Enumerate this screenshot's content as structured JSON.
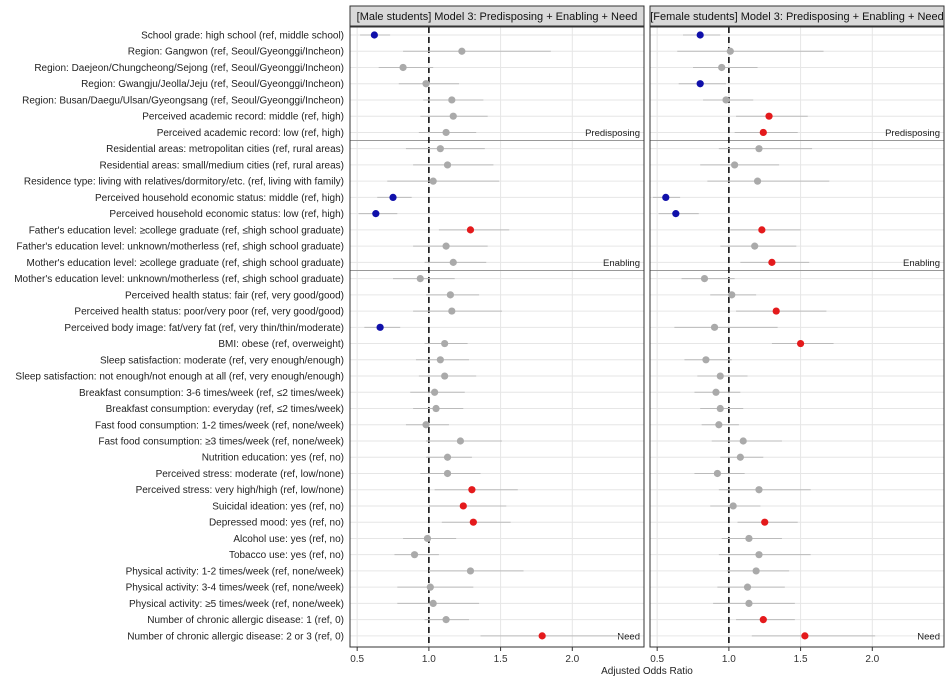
{
  "chart_data": {
    "type": "scatter",
    "xlabel": "Adjusted Odds Ratio",
    "xlim": [
      0.45,
      2.5
    ],
    "xticks": [
      0.5,
      1.0,
      1.5,
      2.0
    ],
    "tick_labels": [
      "0.5",
      "1.0",
      "1.5",
      "2.0"
    ],
    "reference_line": 1.0,
    "colors": {
      "significant_high": "#e41a1c",
      "significant_low": "#1010aa",
      "not_significant": "#aaaaaa",
      "ci": "#bbbbbb",
      "strip": "#d9d9d9",
      "grid": "#e6e6e6"
    },
    "groups": [
      {
        "label": "Predisposing",
        "start": 0,
        "end": 6
      },
      {
        "label": "Enabling",
        "start": 7,
        "end": 14
      },
      {
        "label": "Need",
        "start": 15,
        "end": 37
      }
    ],
    "variables": [
      "School grade: high school (ref,  middle school)",
      "Region: Gangwon (ref, Seoul/Gyeonggi/Incheon)",
      "Region: Daejeon/Chungcheong/Sejong (ref, Seoul/Gyeonggi/Incheon)",
      "Region: Gwangju/Jeolla/Jeju (ref, Seoul/Gyeonggi/Incheon)",
      "Region: Busan/Daegu/Ulsan/Gyeongsang (ref, Seoul/Gyeonggi/Incheon)",
      "Perceived academic record: middle (ref, high)",
      "Perceived academic record: low (ref, high)",
      "Residential areas: metropolitan cities (ref, rural areas)",
      "Residential areas: small/medium cities (ref, rural areas)",
      "Residence type: living with relatives/dormitory/etc. (ref, living with family)",
      "Perceived household economic status: middle (ref, high)",
      "Perceived household economic status: low (ref, high)",
      "Father's education level: ≥college graduate (ref, ≤high school graduate)",
      "Father's education level: unknown/motherless (ref, ≤high school graduate)",
      "Mother's education level: ≥college graduate (ref, ≤high school graduate)",
      "Mother's education level: unknown/motherless (ref, ≤high school graduate)",
      "Perceived health status: fair (ref, very good/good)",
      "Perceived health status: poor/very poor (ref, very good/good)",
      "Perceived body image: fat/very fat (ref, very thin/thin/moderate)",
      "BMI: obese (ref, overweight)",
      "Sleep satisfaction: moderate (ref, very enough/enough)",
      "Sleep satisfaction: not enough/not enough at all (ref, very enough/enough)",
      "Breakfast consumption: 3-6 times/week (ref, ≤2 times/week)",
      "Breakfast consumption: everyday (ref, ≤2 times/week)",
      "Fast food consumption: 1-2 times/week (ref, none/week)",
      "Fast food consumption: ≥3 times/week (ref, none/week)",
      "Nutrition education: yes (ref, no)",
      "Perceived stress: moderate (ref, low/none)",
      "Perceived stress: very high/high (ref, low/none)",
      "Suicidal ideation: yes (ref, no)",
      "Depressed mood: yes (ref, no)",
      "Alcohol use: yes (ref, no)",
      "Tobacco use: yes (ref, no)",
      "Physical activity: 1-2 times/week (ref, none/week)",
      "Physical activity: 3-4 times/week (ref, none/week)",
      "Physical activity: ≥5 times/week (ref, none/week)",
      "Number of chronic allergic disease: 1 (ref, 0)",
      "Number of chronic allergic disease: 2 or 3 (ref, 0)"
    ],
    "panels": [
      {
        "title": "[Male students] Model 3: Predisposing + Enabling + Need",
        "series": [
          {
            "or": 0.62,
            "lo": 0.52,
            "hi": 0.73,
            "sig": "low"
          },
          {
            "or": 1.23,
            "lo": 0.82,
            "hi": 1.85,
            "sig": "none"
          },
          {
            "or": 0.82,
            "lo": 0.65,
            "hi": 1.03,
            "sig": "none"
          },
          {
            "or": 0.98,
            "lo": 0.79,
            "hi": 1.21,
            "sig": "none"
          },
          {
            "or": 1.16,
            "lo": 0.96,
            "hi": 1.38,
            "sig": "none"
          },
          {
            "or": 1.17,
            "lo": 0.94,
            "hi": 1.41,
            "sig": "none"
          },
          {
            "or": 1.12,
            "lo": 0.93,
            "hi": 1.33,
            "sig": "none"
          },
          {
            "or": 1.08,
            "lo": 0.84,
            "hi": 1.39,
            "sig": "none"
          },
          {
            "or": 1.13,
            "lo": 0.89,
            "hi": 1.45,
            "sig": "none"
          },
          {
            "or": 1.03,
            "lo": 0.71,
            "hi": 1.49,
            "sig": "none"
          },
          {
            "or": 0.75,
            "lo": 0.64,
            "hi": 0.88,
            "sig": "low"
          },
          {
            "or": 0.63,
            "lo": 0.51,
            "hi": 0.78,
            "sig": "low"
          },
          {
            "or": 1.29,
            "lo": 1.07,
            "hi": 1.56,
            "sig": "high"
          },
          {
            "or": 1.12,
            "lo": 0.89,
            "hi": 1.41,
            "sig": "none"
          },
          {
            "or": 1.17,
            "lo": 0.97,
            "hi": 1.4,
            "sig": "none"
          },
          {
            "or": 0.94,
            "lo": 0.75,
            "hi": 1.18,
            "sig": "none"
          },
          {
            "or": 1.15,
            "lo": 0.98,
            "hi": 1.35,
            "sig": "none"
          },
          {
            "or": 1.16,
            "lo": 0.89,
            "hi": 1.51,
            "sig": "none"
          },
          {
            "or": 0.66,
            "lo": 0.55,
            "hi": 0.8,
            "sig": "low"
          },
          {
            "or": 1.11,
            "lo": 0.97,
            "hi": 1.27,
            "sig": "none"
          },
          {
            "or": 1.08,
            "lo": 0.91,
            "hi": 1.28,
            "sig": "none"
          },
          {
            "or": 1.11,
            "lo": 0.93,
            "hi": 1.33,
            "sig": "none"
          },
          {
            "or": 1.04,
            "lo": 0.87,
            "hi": 1.25,
            "sig": "none"
          },
          {
            "or": 1.05,
            "lo": 0.89,
            "hi": 1.24,
            "sig": "none"
          },
          {
            "or": 0.98,
            "lo": 0.84,
            "hi": 1.14,
            "sig": "none"
          },
          {
            "or": 1.22,
            "lo": 0.98,
            "hi": 1.51,
            "sig": "none"
          },
          {
            "or": 1.13,
            "lo": 0.98,
            "hi": 1.3,
            "sig": "none"
          },
          {
            "or": 1.13,
            "lo": 0.94,
            "hi": 1.36,
            "sig": "none"
          },
          {
            "or": 1.3,
            "lo": 1.04,
            "hi": 1.62,
            "sig": "high"
          },
          {
            "or": 1.24,
            "lo": 1.0,
            "hi": 1.54,
            "sig": "high"
          },
          {
            "or": 1.31,
            "lo": 1.09,
            "hi": 1.57,
            "sig": "high"
          },
          {
            "or": 0.99,
            "lo": 0.82,
            "hi": 1.19,
            "sig": "none"
          },
          {
            "or": 0.9,
            "lo": 0.76,
            "hi": 1.07,
            "sig": "none"
          },
          {
            "or": 1.29,
            "lo": 1.0,
            "hi": 1.66,
            "sig": "none"
          },
          {
            "or": 1.01,
            "lo": 0.78,
            "hi": 1.31,
            "sig": "none"
          },
          {
            "or": 1.03,
            "lo": 0.78,
            "hi": 1.35,
            "sig": "none"
          },
          {
            "or": 1.12,
            "lo": 0.97,
            "hi": 1.28,
            "sig": "none"
          },
          {
            "or": 1.79,
            "lo": 1.36,
            "hi": 2.36,
            "sig": "high"
          }
        ]
      },
      {
        "title": "[Female students] Model 3: Predisposing + Enabling + Need",
        "series": [
          {
            "or": 0.8,
            "lo": 0.68,
            "hi": 0.94,
            "sig": "low"
          },
          {
            "or": 1.01,
            "lo": 0.64,
            "hi": 1.66,
            "sig": "none"
          },
          {
            "or": 0.95,
            "lo": 0.75,
            "hi": 1.2,
            "sig": "none"
          },
          {
            "or": 0.8,
            "lo": 0.65,
            "hi": 0.98,
            "sig": "low"
          },
          {
            "or": 0.98,
            "lo": 0.82,
            "hi": 1.17,
            "sig": "none"
          },
          {
            "or": 1.28,
            "lo": 1.05,
            "hi": 1.55,
            "sig": "high"
          },
          {
            "or": 1.24,
            "lo": 1.04,
            "hi": 1.48,
            "sig": "high"
          },
          {
            "or": 1.21,
            "lo": 0.93,
            "hi": 1.58,
            "sig": "none"
          },
          {
            "or": 1.04,
            "lo": 0.8,
            "hi": 1.35,
            "sig": "none"
          },
          {
            "or": 1.2,
            "lo": 0.85,
            "hi": 1.7,
            "sig": "none"
          },
          {
            "or": 0.56,
            "lo": 0.47,
            "hi": 0.66,
            "sig": "low"
          },
          {
            "or": 0.63,
            "lo": 0.51,
            "hi": 0.79,
            "sig": "low"
          },
          {
            "or": 1.23,
            "lo": 1.01,
            "hi": 1.5,
            "sig": "high"
          },
          {
            "or": 1.18,
            "lo": 0.94,
            "hi": 1.47,
            "sig": "none"
          },
          {
            "or": 1.3,
            "lo": 1.08,
            "hi": 1.56,
            "sig": "high"
          },
          {
            "or": 0.83,
            "lo": 0.67,
            "hi": 1.04,
            "sig": "none"
          },
          {
            "or": 1.02,
            "lo": 0.87,
            "hi": 1.19,
            "sig": "none"
          },
          {
            "or": 1.33,
            "lo": 1.05,
            "hi": 1.68,
            "sig": "high"
          },
          {
            "or": 0.9,
            "lo": 0.62,
            "hi": 1.34,
            "sig": "none"
          },
          {
            "or": 1.5,
            "lo": 1.3,
            "hi": 1.73,
            "sig": "high"
          },
          {
            "or": 0.84,
            "lo": 0.69,
            "hi": 1.02,
            "sig": "none"
          },
          {
            "or": 0.94,
            "lo": 0.78,
            "hi": 1.13,
            "sig": "none"
          },
          {
            "or": 0.91,
            "lo": 0.76,
            "hi": 1.08,
            "sig": "none"
          },
          {
            "or": 0.94,
            "lo": 0.8,
            "hi": 1.1,
            "sig": "none"
          },
          {
            "or": 0.93,
            "lo": 0.81,
            "hi": 1.07,
            "sig": "none"
          },
          {
            "or": 1.1,
            "lo": 0.88,
            "hi": 1.37,
            "sig": "none"
          },
          {
            "or": 1.08,
            "lo": 0.94,
            "hi": 1.24,
            "sig": "none"
          },
          {
            "or": 0.92,
            "lo": 0.76,
            "hi": 1.11,
            "sig": "none"
          },
          {
            "or": 1.21,
            "lo": 0.93,
            "hi": 1.57,
            "sig": "none"
          },
          {
            "or": 1.03,
            "lo": 0.87,
            "hi": 1.22,
            "sig": "none"
          },
          {
            "or": 1.25,
            "lo": 1.06,
            "hi": 1.48,
            "sig": "high"
          },
          {
            "or": 1.14,
            "lo": 0.95,
            "hi": 1.37,
            "sig": "none"
          },
          {
            "or": 1.21,
            "lo": 0.93,
            "hi": 1.57,
            "sig": "none"
          },
          {
            "or": 1.19,
            "lo": 0.99,
            "hi": 1.42,
            "sig": "none"
          },
          {
            "or": 1.13,
            "lo": 0.92,
            "hi": 1.39,
            "sig": "none"
          },
          {
            "or": 1.14,
            "lo": 0.89,
            "hi": 1.46,
            "sig": "none"
          },
          {
            "or": 1.24,
            "lo": 1.05,
            "hi": 1.46,
            "sig": "high"
          },
          {
            "or": 1.53,
            "lo": 1.16,
            "hi": 2.02,
            "sig": "high"
          }
        ]
      }
    ]
  }
}
